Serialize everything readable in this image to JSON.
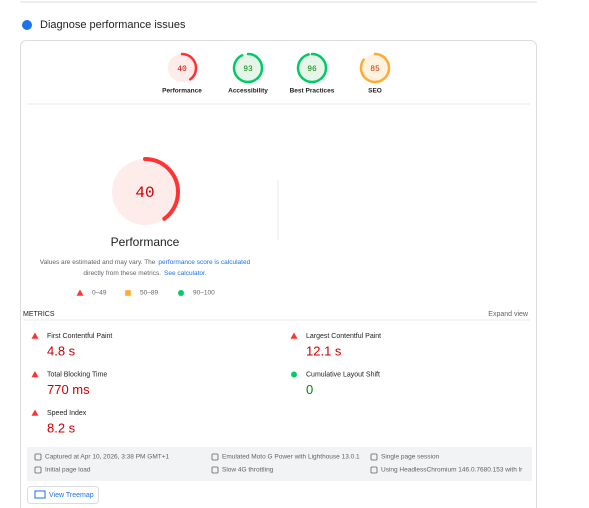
{
  "section": {
    "title": "Diagnose performance issues"
  },
  "gauges": [
    {
      "score": 40,
      "label": "Performance",
      "status": "fail"
    },
    {
      "score": 93,
      "label": "Accessibility",
      "status": "pass"
    },
    {
      "score": 96,
      "label": "Best Practices",
      "status": "pass"
    },
    {
      "score": 85,
      "label": "SEO",
      "status": "average"
    }
  ],
  "main": {
    "score": 40,
    "label": "Performance",
    "status": "fail",
    "note": {
      "text1": "Values are estimated and may vary. The",
      "link1": "performance score is calculated",
      "text2": "directly from these metrics.",
      "link2": "See calculator."
    },
    "legend": [
      {
        "range": "0–49",
        "status": "fail"
      },
      {
        "range": "50–89",
        "status": "average"
      },
      {
        "range": "90–100",
        "status": "pass"
      }
    ]
  },
  "metrics": {
    "heading": "METRICS",
    "toggle": "Expand view",
    "items": [
      {
        "name": "First Contentful Paint",
        "value": "4.8 s",
        "status": "fail"
      },
      {
        "name": "Largest Contentful Paint",
        "value": "12.1 s",
        "status": "fail"
      },
      {
        "name": "Total Blocking Time",
        "value": "770 ms",
        "status": "fail"
      },
      {
        "name": "Cumulative Layout Shift",
        "value": "0",
        "status": "pass"
      },
      {
        "name": "Speed Index",
        "value": "8.2 s",
        "status": "fail"
      }
    ]
  },
  "footer": {
    "items": [
      "Captured at Apr 10, 2026, 3:38 PM GMT+1",
      "Initial page load",
      "Emulated Moto G Power with Lighthouse 13.0.1",
      "Slow 4G throttling",
      "Single page session",
      "Using HeadlessChromium 146.0.7680.153 with lr"
    ]
  },
  "button": {
    "label": "View Treemap"
  }
}
